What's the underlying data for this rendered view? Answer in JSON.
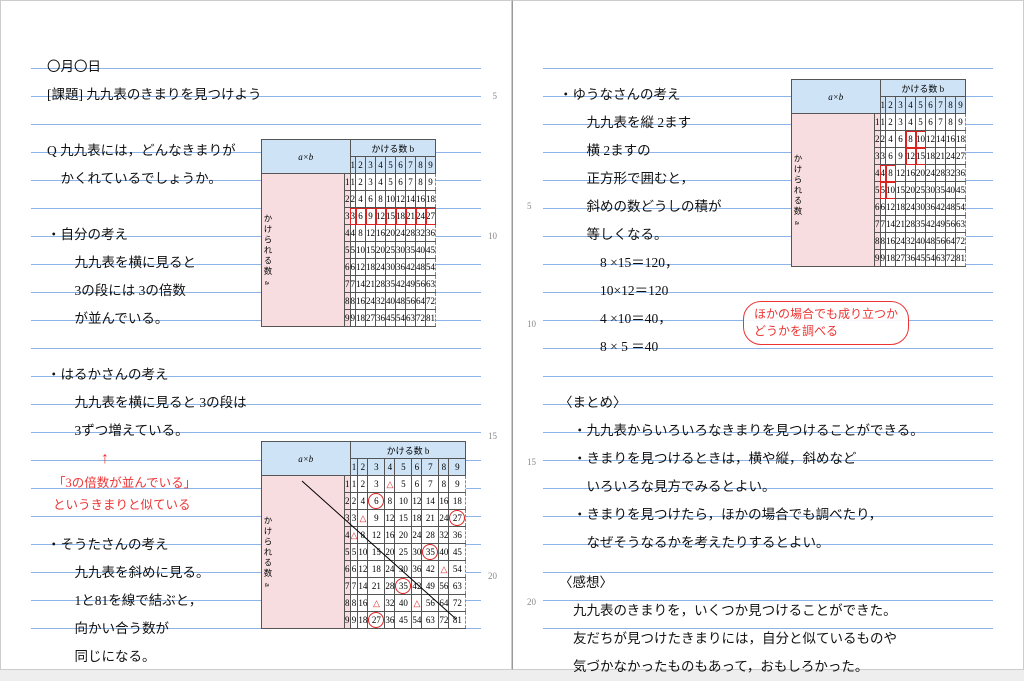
{
  "leftPage": {
    "date": "〇月〇日",
    "task": "[課題] 九九表のきまりを見つけよう",
    "q1": "Q 九九表には，どんなきまりが",
    "q2": "　かくれているでしょうか。",
    "own_h": "・自分の考え",
    "own1": "　九九表を横に見ると",
    "own2": "　3の段には 3の倍数",
    "own3": "　が並んでいる。",
    "haruka_h": "・はるかさんの考え",
    "haruka1": "　九九表を横に見ると 3の段は",
    "haruka2": "　3ずつ増えている。",
    "arrow_note1": "「3の倍数が並んでいる」",
    "arrow_note2": "というきまりと似ている",
    "souta_h": "・そうたさんの考え",
    "souta1": "　九九表を斜めに見る。",
    "souta2": "　1と81を線で結ぶと，",
    "souta3": "　向かい合う数が",
    "souta4": "　同じになる。",
    "lineNums": [
      "5",
      "10",
      "15",
      "20"
    ]
  },
  "rightPage": {
    "yuuna_h": "・ゆうなさんの考え",
    "yuuna1": "　九九表を縦 2ます",
    "yuuna2": "　横 2ますの",
    "yuuna3": "　正方形で囲むと，",
    "yuuna4": "　斜めの数どうしの積が",
    "yuuna5": "　等しくなる。",
    "eq1": "　　8 ×15＝120，",
    "eq2": "　　10×12＝120",
    "eq3": "　　4 ×10＝40，",
    "eq4": "　　8 × 5 ＝40",
    "bubble1": "ほかの場合でも成り立つか",
    "bubble2": "どうかを調べる",
    "summary_h": "〈まとめ〉",
    "s1": "・九九表からいろいろなきまりを見つけることができる。",
    "s2": "・きまりを見つけるときは，横や縦，斜めなど",
    "s3": "　いろいろな見方でみるとよい。",
    "s4": "・きまりを見つけたら，ほかの場合でも調べたり，",
    "s5": "　なぜそうなるかを考えたりするとよい。",
    "thought_h": "〈感想〉",
    "t1": "九九表のきまりを，いくつか見つけることができた。",
    "t2": "友だちが見つけたきまりには，自分と似ているものや",
    "t3": "気づかなかったものもあって，おもしろかった。",
    "lineNums": [
      "5",
      "10",
      "15",
      "20"
    ]
  },
  "table": {
    "corner": "a×b",
    "header_b": "かける数 b",
    "header_a": "かけられる数 a",
    "nums": [
      "1",
      "2",
      "3",
      "4",
      "5",
      "6",
      "7",
      "8",
      "9"
    ],
    "colors": {
      "hb": "#cfe3f6",
      "ha": "#f7dde0",
      "hl": "#d22"
    }
  }
}
